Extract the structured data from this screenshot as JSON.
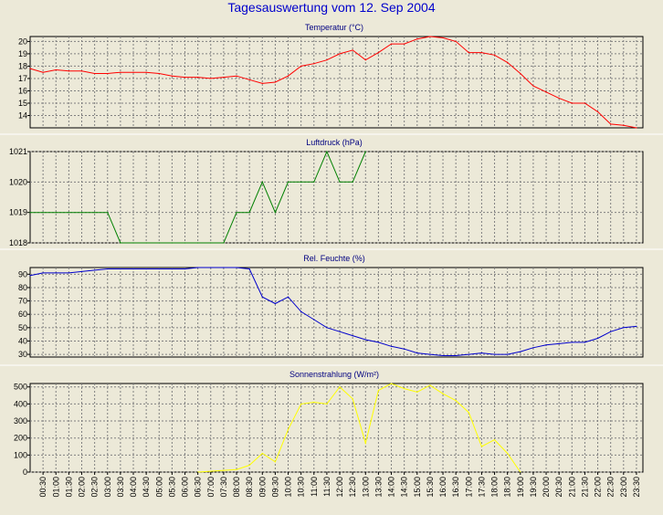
{
  "title": "Tagesauswertung vom 12. Sep 2004",
  "chart_data": [
    {
      "type": "line",
      "title": "Temperatur (°C)",
      "ylim": [
        13,
        20.4
      ],
      "yticks": [
        "14",
        "15",
        "16",
        "17",
        "18",
        "19",
        "20"
      ],
      "color": "#FF0000",
      "grid": true,
      "x": [
        0,
        0.5,
        1,
        1.5,
        2,
        2.5,
        3,
        3.5,
        4,
        4.5,
        5,
        5.5,
        6,
        6.5,
        7,
        7.5,
        8,
        8.5,
        9,
        9.5,
        10,
        10.5,
        11,
        11.5,
        12,
        12.5,
        13,
        13.5,
        14,
        14.5,
        15,
        15.5,
        16,
        16.5,
        17,
        17.5,
        18,
        18.5,
        19,
        19.5,
        20,
        20.5,
        21,
        21.5,
        22,
        22.5,
        23,
        23.5
      ],
      "values": [
        17.8,
        17.5,
        17.7,
        17.6,
        17.6,
        17.4,
        17.4,
        17.5,
        17.5,
        17.5,
        17.4,
        17.2,
        17.1,
        17.1,
        17.0,
        17.1,
        17.2,
        16.9,
        16.6,
        16.7,
        17.2,
        18.0,
        18.2,
        18.5,
        19.0,
        19.3,
        18.5,
        19.1,
        19.8,
        19.8,
        20.2,
        20.4,
        20.3,
        20.0,
        19.1,
        19.1,
        18.9,
        18.3,
        17.4,
        16.4,
        15.9,
        15.4,
        15.0,
        15.0,
        14.3,
        13.3,
        13.2,
        13.0
      ]
    },
    {
      "type": "line",
      "title": "Luftdruck (hPa)",
      "ylim": [
        1018,
        1021
      ],
      "yticks": [
        "1018",
        "1019",
        "1020",
        "1021"
      ],
      "color": "#008000",
      "grid": true,
      "x": [
        0,
        0.5,
        1,
        1.5,
        2,
        2.5,
        3,
        3.5,
        4,
        4.5,
        5,
        5.5,
        6,
        6.5,
        7,
        7.5,
        8,
        8.5,
        9,
        9.5,
        10,
        10.5,
        11,
        11.5,
        12,
        12.5,
        13
      ],
      "values": [
        1019,
        1019,
        1019,
        1019,
        1019,
        1019,
        1019,
        1018,
        1018,
        1018,
        1018,
        1018,
        1018,
        1018,
        1018,
        1018,
        1019,
        1019,
        1020,
        1019,
        1020,
        1020,
        1020,
        1021,
        1020,
        1020,
        1021
      ]
    },
    {
      "type": "line",
      "title": "Rel. Feuchte (%)",
      "ylim": [
        28,
        95
      ],
      "yticks": [
        "30",
        "40",
        "50",
        "60",
        "70",
        "80",
        "90"
      ],
      "color": "#0000CC",
      "grid": true,
      "x": [
        0,
        0.5,
        1,
        1.5,
        2,
        2.5,
        3,
        3.5,
        4,
        4.5,
        5,
        5.5,
        6,
        6.5,
        7,
        7.5,
        8,
        8.5,
        9,
        9.5,
        10,
        10.5,
        11,
        11.5,
        12,
        12.5,
        13,
        13.5,
        14,
        14.5,
        15,
        15.5,
        16,
        16.5,
        17,
        17.5,
        18,
        18.5,
        19,
        19.5,
        20,
        20.5,
        21,
        21.5,
        22,
        22.5,
        23,
        23.5
      ],
      "values": [
        89,
        91,
        91,
        91,
        92,
        93,
        94,
        94,
        94,
        94,
        94,
        94,
        94,
        95,
        95,
        95,
        95,
        94,
        73,
        68,
        73,
        62,
        56,
        50,
        47,
        44,
        41,
        39,
        36,
        34,
        31,
        30,
        29,
        29,
        30,
        31,
        30,
        30,
        32,
        35,
        37,
        38,
        39,
        39,
        42,
        47,
        50,
        51
      ]
    },
    {
      "type": "line",
      "title": "Sonnenstrahlung (W/m²)",
      "ylim": [
        0,
        520
      ],
      "yticks": [
        "0",
        "100",
        "200",
        "300",
        "400",
        "500"
      ],
      "color": "#FFFF00",
      "grid": true,
      "x": [
        6.5,
        7,
        7.5,
        8,
        8.5,
        9,
        9.5,
        10,
        10.5,
        11,
        11.5,
        12,
        12.5,
        13,
        13.5,
        14,
        14.5,
        15,
        15.5,
        16,
        16.5,
        17,
        17.5,
        18,
        18.5,
        19
      ],
      "values": [
        0,
        5,
        10,
        15,
        40,
        110,
        60,
        250,
        400,
        410,
        400,
        500,
        430,
        170,
        480,
        520,
        490,
        470,
        510,
        460,
        420,
        350,
        150,
        190,
        110,
        0
      ]
    }
  ],
  "x_tick_labels": [
    "00:30",
    "01:00",
    "01:30",
    "02:00",
    "02:30",
    "03:00",
    "03:30",
    "04:00",
    "04:30",
    "05:00",
    "05:30",
    "06:00",
    "06:30",
    "07:00",
    "07:30",
    "08:00",
    "08:30",
    "09:00",
    "09:30",
    "10:00",
    "10:30",
    "11:00",
    "11:30",
    "12:00",
    "12:30",
    "13:00",
    "13:30",
    "14:00",
    "14:30",
    "15:00",
    "15:30",
    "16:00",
    "16:30",
    "17:00",
    "17:30",
    "18:00",
    "18:30",
    "19:00",
    "19:30",
    "20:00",
    "20:30",
    "21:00",
    "21:30",
    "22:00",
    "22:30",
    "23:00",
    "23:30"
  ]
}
